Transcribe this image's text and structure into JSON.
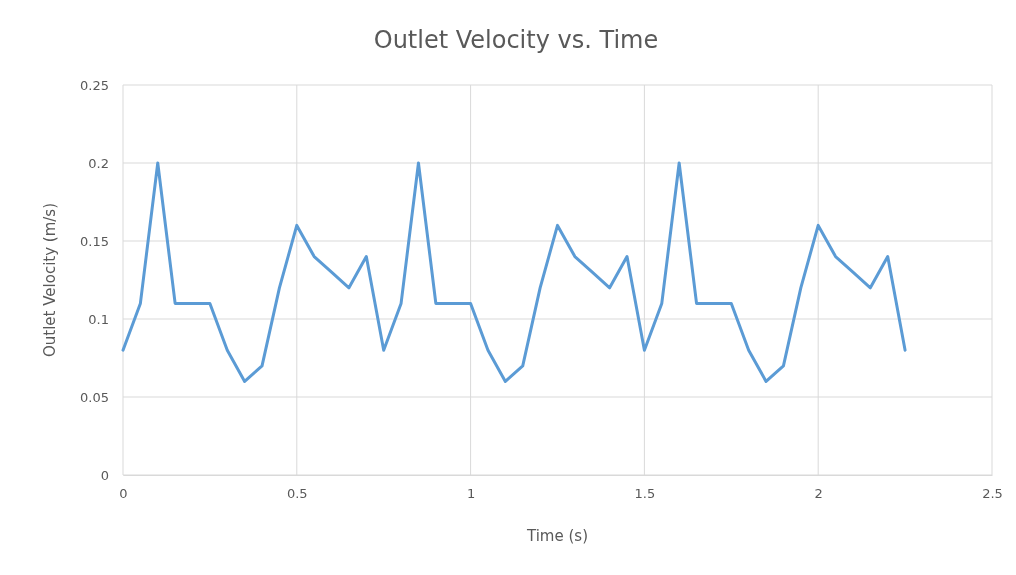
{
  "chart_data": {
    "type": "line",
    "title": "Outlet Velocity vs. Time",
    "xlabel": "Time (s)",
    "ylabel": "Outlet Velocity (m/s)",
    "x": [
      0,
      0.05,
      0.1,
      0.15,
      0.2,
      0.25,
      0.3,
      0.35,
      0.4,
      0.45,
      0.5,
      0.55,
      0.6,
      0.65,
      0.7,
      0.75,
      0.8,
      0.85,
      0.9,
      0.95,
      1,
      1.05,
      1.1,
      1.15,
      1.2,
      1.25,
      1.3,
      1.35,
      1.4,
      1.45,
      1.5,
      1.55,
      1.6,
      1.65,
      1.7,
      1.75,
      1.8,
      1.85,
      1.9,
      1.95,
      2,
      2.05,
      2.1,
      2.15,
      2.2,
      2.25
    ],
    "series": [
      {
        "color": "#5b9bd5",
        "values": [
          0.08,
          0.11,
          0.2,
          0.11,
          0.11,
          0.11,
          0.08,
          0.06,
          0.07,
          0.12,
          0.16,
          0.14,
          0.13,
          0.12,
          0.14,
          0.08,
          0.11,
          0.2,
          0.11,
          0.11,
          0.11,
          0.08,
          0.06,
          0.07,
          0.12,
          0.16,
          0.14,
          0.13,
          0.12,
          0.14,
          0.08,
          0.11,
          0.2,
          0.11,
          0.11,
          0.11,
          0.08,
          0.06,
          0.07,
          0.12,
          0.16,
          0.14,
          0.13,
          0.12,
          0.14,
          0.08
        ]
      }
    ],
    "xlim": [
      0,
      2.5
    ],
    "xticks": [
      0,
      0.5,
      1,
      1.5,
      2,
      2.5
    ],
    "ylim": [
      0,
      0.25
    ],
    "yticks": [
      0,
      0.05,
      0.1,
      0.15,
      0.2,
      0.25
    ],
    "grid": true
  }
}
